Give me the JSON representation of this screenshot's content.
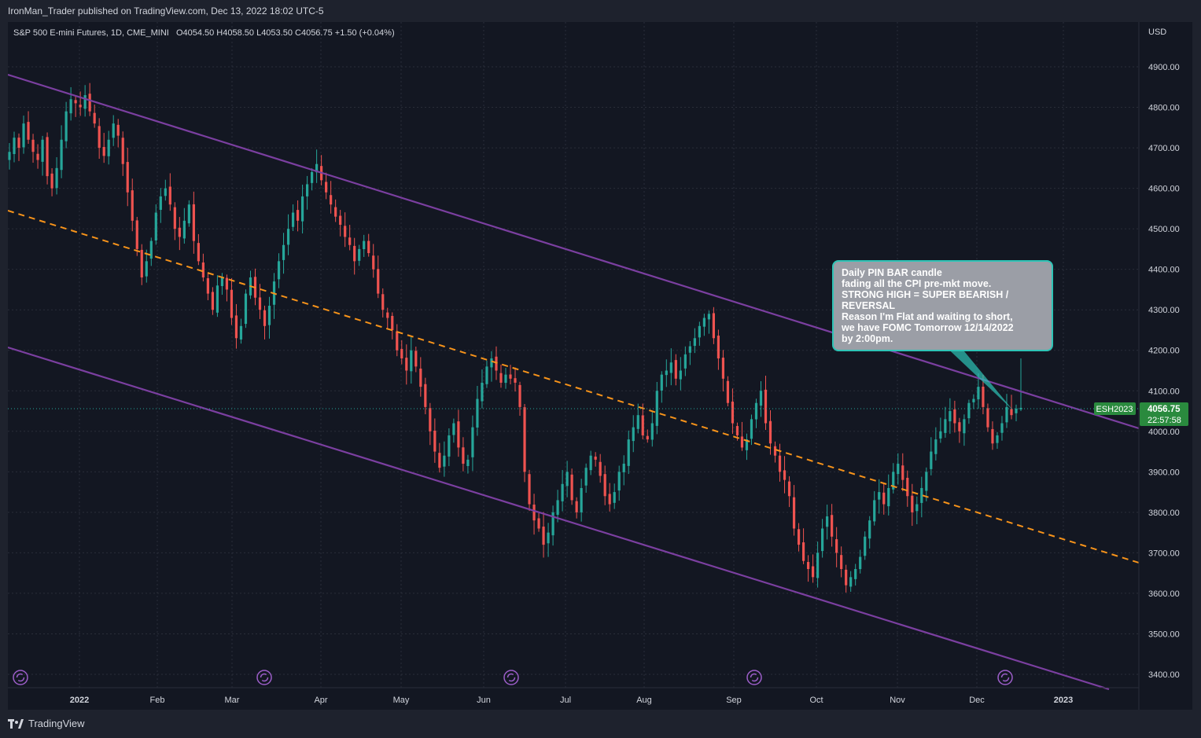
{
  "header": {
    "publisher_text": "IronMan_Trader published on TradingView.com, Dec 13, 2022 18:02 UTC-5"
  },
  "footer": {
    "brand": "TradingView"
  },
  "chart_data": {
    "type": "candlestick",
    "title": "S&P 500 E-mini Futures, 1D, CME_MINI",
    "ohlc_text": "O4054.50 H4058.50 L4053.50 C4056.75 +1.50 (+0.04%)",
    "currency": "USD",
    "ylim": [
      3370,
      4990
    ],
    "y_ticks": [
      "3400.00",
      "3500.00",
      "3600.00",
      "3700.00",
      "3800.00",
      "3900.00",
      "4000.00",
      "4100.00",
      "4200.00",
      "4300.00",
      "4400.00",
      "4500.00",
      "4600.00",
      "4700.00",
      "4800.00",
      "4900.00"
    ],
    "x_ticks": [
      "2022",
      "Feb",
      "Mar",
      "Apr",
      "May",
      "Jun",
      "Jul",
      "Aug",
      "Sep",
      "Oct",
      "Nov",
      "Dec",
      "2023"
    ],
    "symbol_label": "ESH2023",
    "last_price": "4056.75",
    "countdown": "22:57:58",
    "colors": {
      "up": "#26a69a",
      "down": "#ef5350",
      "channel": "#7b3fa0",
      "midline": "#f7931a",
      "price_tag": "#2a8a3e",
      "callout_border": "#2ec4b6"
    },
    "grid": true,
    "annotation": "Daily PIN BAR candle\nfading all the CPI pre-mkt move.\nSTRONG HIGH = SUPER BEARISH /\nREVERSAL\nReason I'm Flat and waiting to short,\nwe have FOMC Tomorrow 12/14/2022\nby 2:00pm.",
    "session_icons": 5,
    "candles_note": "approximate daily closes",
    "closes": [
      4690,
      4725,
      4700,
      4760,
      4720,
      4690,
      4670,
      4720,
      4630,
      4600,
      4650,
      4720,
      4790,
      4820,
      4810,
      4800,
      4830,
      4790,
      4760,
      4700,
      4680,
      4720,
      4760,
      4730,
      4660,
      4590,
      4520,
      4450,
      4380,
      4420,
      4470,
      4540,
      4580,
      4600,
      4560,
      4500,
      4480,
      4520,
      4560,
      4470,
      4420,
      4380,
      4340,
      4300,
      4360,
      4380,
      4350,
      4280,
      4230,
      4260,
      4340,
      4380,
      4330,
      4300,
      4260,
      4310,
      4370,
      4420,
      4460,
      4500,
      4540,
      4520,
      4580,
      4610,
      4640,
      4660,
      4620,
      4590,
      4560,
      4530,
      4510,
      4480,
      4460,
      4420,
      4450,
      4470,
      4440,
      4400,
      4340,
      4300,
      4280,
      4250,
      4200,
      4180,
      4150,
      4200,
      4160,
      4110,
      4060,
      4000,
      3950,
      3910,
      3940,
      3990,
      4020,
      3960,
      3920,
      3930,
      4010,
      4080,
      4120,
      4160,
      4180,
      4150,
      4120,
      4140,
      4130,
      4120,
      4060,
      3900,
      3820,
      3780,
      3760,
      3720,
      3750,
      3800,
      3830,
      3870,
      3900,
      3830,
      3800,
      3860,
      3910,
      3940,
      3930,
      3890,
      3840,
      3820,
      3850,
      3900,
      3920,
      3980,
      4010,
      4040,
      3990,
      3980,
      4020,
      4100,
      4140,
      4150,
      4170,
      4130,
      4150,
      4190,
      4210,
      4230,
      4260,
      4280,
      4290,
      4230,
      4180,
      4130,
      4070,
      4020,
      3990,
      3960,
      3980,
      4030,
      4070,
      4100,
      4020,
      3970,
      3940,
      3900,
      3880,
      3840,
      3760,
      3720,
      3680,
      3660,
      3640,
      3700,
      3760,
      3790,
      3740,
      3700,
      3660,
      3620,
      3640,
      3660,
      3690,
      3740,
      3780,
      3830,
      3850,
      3820,
      3860,
      3900,
      3920,
      3880,
      3840,
      3800,
      3820,
      3860,
      3900,
      3950,
      3980,
      4000,
      4030,
      4050,
      4020,
      4000,
      4030,
      4070,
      4080,
      4110,
      4060,
      4010,
      3970,
      3990,
      4020,
      4060,
      4040,
      4056
    ]
  }
}
